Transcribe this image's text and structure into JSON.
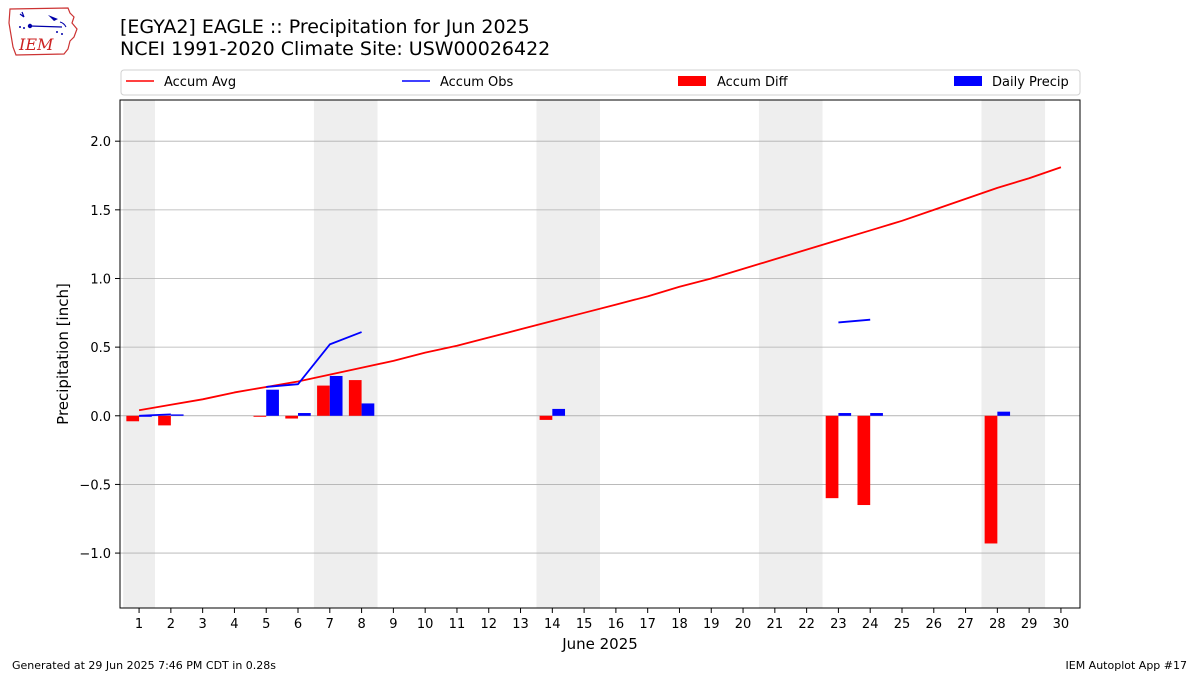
{
  "header": {
    "title_line1": "[EGYA2] EAGLE :: Precipitation for Jun 2025",
    "title_line2": "NCEI 1991-2020 Climate Site: USW00026422"
  },
  "logo": {
    "text": "IEM",
    "icon": "iem-iowa-logo"
  },
  "footer": {
    "generated": "Generated at 29 Jun 2025 7:46 PM CDT in 0.28s",
    "app": "IEM Autoplot App #17"
  },
  "colors": {
    "accum_avg": "#ff0000",
    "accum_obs": "#0000ff",
    "accum_diff": "#ff0000",
    "daily_precip": "#0000ff",
    "weekend_shade": "#eeeeee",
    "grid": "#b0b0b0"
  },
  "chart_data": {
    "type": "bar",
    "xlabel": "June 2025",
    "ylabel": "Precipitation [inch]",
    "ylim": [
      -1.4,
      2.3
    ],
    "yticks": [
      -1.0,
      -0.5,
      0.0,
      0.5,
      1.0,
      1.5,
      2.0
    ],
    "ytick_labels": [
      "−1.0",
      "−0.5",
      "0.0",
      "0.5",
      "1.0",
      "1.5",
      "2.0"
    ],
    "grid": true,
    "legend_position": "top, above plot",
    "x": [
      1,
      2,
      3,
      4,
      5,
      6,
      7,
      8,
      9,
      10,
      11,
      12,
      13,
      14,
      15,
      16,
      17,
      18,
      19,
      20,
      21,
      22,
      23,
      24,
      25,
      26,
      27,
      28,
      29,
      30
    ],
    "weekend_days": [
      1,
      7,
      8,
      14,
      15,
      21,
      22,
      28,
      29
    ],
    "series": [
      {
        "name": "Accum Avg",
        "kind": "line",
        "values": [
          0.04,
          0.08,
          0.12,
          0.17,
          0.21,
          0.25,
          0.3,
          0.35,
          0.4,
          0.46,
          0.51,
          0.57,
          0.63,
          0.69,
          0.75,
          0.81,
          0.87,
          0.94,
          1.0,
          1.07,
          1.14,
          1.21,
          1.28,
          1.35,
          1.42,
          1.5,
          1.58,
          1.66,
          1.73,
          1.81
        ]
      },
      {
        "name": "Accum Obs",
        "kind": "line",
        "values": [
          0.0,
          0.01,
          null,
          null,
          0.21,
          0.23,
          0.52,
          0.61,
          null,
          null,
          null,
          null,
          null,
          null,
          null,
          null,
          null,
          null,
          null,
          null,
          null,
          null,
          0.68,
          0.7,
          null,
          null,
          null,
          null,
          null,
          null
        ]
      },
      {
        "name": "Accum Diff",
        "kind": "bar",
        "values": [
          -0.04,
          -0.07,
          null,
          null,
          0.0,
          -0.02,
          0.22,
          0.26,
          null,
          null,
          null,
          null,
          null,
          -0.03,
          null,
          null,
          null,
          null,
          null,
          null,
          null,
          null,
          -0.6,
          -0.65,
          null,
          null,
          null,
          -0.93,
          null,
          null
        ]
      },
      {
        "name": "Daily Precip",
        "kind": "bar",
        "values": [
          0.0,
          0.01,
          null,
          null,
          0.19,
          0.02,
          0.29,
          0.09,
          null,
          null,
          null,
          null,
          null,
          0.05,
          null,
          null,
          null,
          null,
          null,
          null,
          null,
          null,
          0.02,
          0.02,
          null,
          null,
          null,
          0.03,
          null,
          null
        ]
      }
    ]
  }
}
